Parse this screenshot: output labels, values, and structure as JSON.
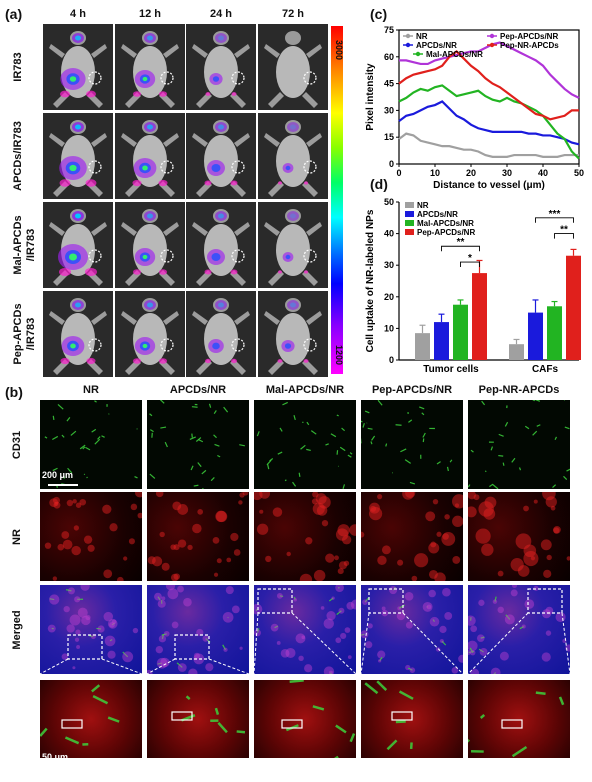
{
  "panel_a": {
    "label": "(a)",
    "times": [
      "4 h",
      "12 h",
      "24 h",
      "72 h"
    ],
    "rows": [
      "IR783",
      "APCDs/IR783",
      "Mal-APCDs\n/IR783",
      "Pep-APCDs\n/IR783"
    ],
    "colorbar_max": "3000",
    "colorbar_min": "1200"
  },
  "panel_b": {
    "label": "(b)",
    "columns": [
      "NR",
      "APCDs/NR",
      "Mal-APCDs/NR",
      "Pep-APCDs/NR",
      "Pep-NR-APCDs"
    ],
    "rows": [
      "CD31",
      "NR",
      "Merged"
    ],
    "scale_top": "200 μm",
    "scale_bottom": "50 μm"
  },
  "panel_c": {
    "label": "(c)",
    "chart_data": {
      "type": "line",
      "xlabel": "Distance to vessel (μm)",
      "ylabel": "Pixel intensity",
      "xlim": [
        0,
        50
      ],
      "ylim": [
        0,
        75
      ],
      "xticks": [
        0,
        10,
        20,
        30,
        40,
        50
      ],
      "yticks": [
        0,
        15,
        30,
        45,
        60,
        75
      ],
      "series": [
        {
          "name": "NR",
          "color": "#a0a0a0",
          "x": [
            0,
            2,
            4,
            6,
            8,
            10,
            12,
            14,
            16,
            18,
            20,
            22,
            24,
            26,
            28,
            30,
            32,
            34,
            36,
            38,
            40,
            42,
            44,
            46,
            48,
            50
          ],
          "y": [
            14,
            17,
            16,
            13,
            12,
            11,
            10,
            10,
            9,
            8,
            8,
            7,
            5,
            4,
            4,
            4,
            5,
            5,
            5,
            5,
            4,
            4,
            4,
            5,
            5,
            5
          ]
        },
        {
          "name": "APCDs/NR",
          "color": "#1a1adc",
          "x": [
            0,
            2,
            4,
            6,
            8,
            10,
            12,
            14,
            16,
            18,
            20,
            22,
            24,
            26,
            28,
            30,
            32,
            34,
            36,
            38,
            40,
            42,
            44,
            46,
            48,
            50
          ],
          "y": [
            24,
            27,
            28,
            30,
            32,
            33,
            35,
            31,
            27,
            25,
            22,
            20,
            19,
            18,
            18,
            18,
            18,
            18,
            17,
            17,
            16,
            16,
            15,
            14,
            12,
            11
          ]
        },
        {
          "name": "Mal-APCDs/NR",
          "color": "#22b422",
          "x": [
            0,
            2,
            4,
            6,
            8,
            10,
            12,
            14,
            16,
            18,
            20,
            22,
            24,
            26,
            28,
            30,
            32,
            34,
            36,
            38,
            40,
            42,
            44,
            46,
            48,
            50
          ],
          "y": [
            35,
            37,
            40,
            42,
            41,
            43,
            44,
            41,
            38,
            39,
            40,
            41,
            38,
            36,
            35,
            37,
            35,
            34,
            32,
            30,
            27,
            22,
            17,
            14,
            7,
            3
          ]
        },
        {
          "name": "Pep-APCDs/NR",
          "color": "#b034d8",
          "x": [
            0,
            2,
            4,
            6,
            8,
            10,
            12,
            14,
            16,
            18,
            20,
            22,
            24,
            26,
            28,
            30,
            32,
            34,
            36,
            38,
            40,
            42,
            44,
            46,
            48,
            50
          ],
          "y": [
            58,
            58,
            57,
            56,
            56,
            58,
            59,
            60,
            61,
            62,
            63,
            63,
            65,
            67,
            68,
            66,
            64,
            62,
            60,
            58,
            55,
            50,
            46,
            42,
            39,
            37
          ]
        },
        {
          "name": "Pep-NR-APCDs",
          "color": "#e0201c",
          "x": [
            0,
            2,
            4,
            6,
            8,
            10,
            12,
            14,
            16,
            18,
            20,
            22,
            24,
            26,
            28,
            30,
            32,
            34,
            36,
            38,
            40,
            42,
            44,
            46,
            48,
            50
          ],
          "y": [
            45,
            48,
            50,
            51,
            52,
            53,
            55,
            60,
            63,
            59,
            55,
            52,
            48,
            45,
            43,
            40,
            37,
            34,
            31,
            28,
            27,
            25,
            26,
            27,
            30,
            30
          ]
        }
      ]
    }
  },
  "panel_d": {
    "label": "(d)",
    "chart_data": {
      "type": "bar",
      "categories": [
        "Tumor cells",
        "CAFs"
      ],
      "ylabel": "Cell uptake of NR-labeled NPs",
      "ylim": [
        0,
        50
      ],
      "yticks": [
        0,
        10,
        20,
        30,
        40,
        50
      ],
      "series": [
        {
          "name": "NR",
          "color": "#a0a0a0",
          "values": [
            8.5,
            5.0
          ],
          "errors": [
            2.5,
            1.5
          ]
        },
        {
          "name": "APCDs/NR",
          "color": "#1a1adc",
          "values": [
            12.0,
            15.0
          ],
          "errors": [
            2.5,
            4.0
          ]
        },
        {
          "name": "Mal-APCDs/NR",
          "color": "#22b422",
          "values": [
            17.5,
            17.0
          ],
          "errors": [
            1.5,
            1.5
          ]
        },
        {
          "name": "Pep-APCDs/NR",
          "color": "#e0201c",
          "values": [
            27.5,
            33.0
          ],
          "errors": [
            4.0,
            2.0
          ]
        }
      ],
      "significance": [
        "**",
        "*",
        "***",
        "**"
      ]
    }
  }
}
